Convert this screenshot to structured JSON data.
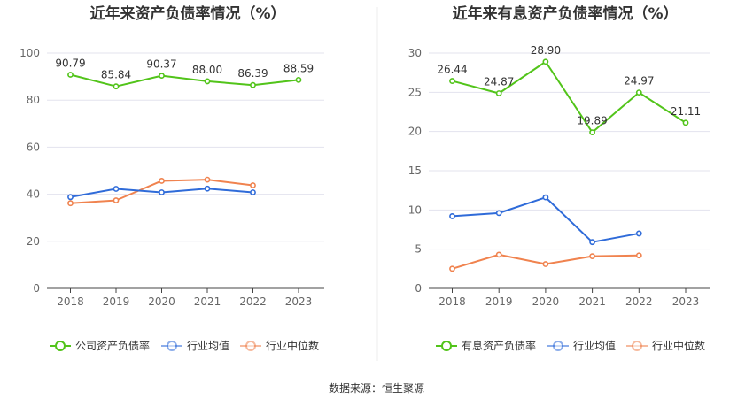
{
  "source_text": "数据来源：恒生聚源",
  "colors": {
    "company": "#52c41a",
    "industry_avg": "#2f6bd9",
    "industry_median": "#f0834f",
    "grid": "#e3e3ee",
    "axis": "#444444"
  },
  "chart_data": [
    {
      "type": "line",
      "title": "近年来资产负债率情况（%）",
      "categories": [
        "2018",
        "2019",
        "2020",
        "2021",
        "2022",
        "2023"
      ],
      "ylim": [
        0,
        100
      ],
      "yticks": [
        0,
        20,
        40,
        60,
        80,
        100
      ],
      "grid": true,
      "legend_position": "bottom",
      "series": [
        {
          "name": "公司资产负债率",
          "color": "#52c41a",
          "values": [
            90.79,
            85.84,
            90.37,
            88.0,
            86.39,
            88.59
          ],
          "labels": [
            "90.79",
            "85.84",
            "90.37",
            "88.00",
            "86.39",
            "88.59"
          ]
        },
        {
          "name": "行业均值",
          "color": "#2f6bd9",
          "values": [
            38.8,
            42.3,
            40.8,
            42.4,
            40.8,
            null
          ]
        },
        {
          "name": "行业中位数",
          "color": "#f0834f",
          "values": [
            36.2,
            37.4,
            45.7,
            46.2,
            43.8,
            null
          ]
        }
      ]
    },
    {
      "type": "line",
      "title": "近年来有息资产负债率情况（%）",
      "categories": [
        "2018",
        "2019",
        "2020",
        "2021",
        "2022",
        "2023"
      ],
      "ylim": [
        0,
        30
      ],
      "yticks": [
        0,
        5,
        10,
        15,
        20,
        25,
        30
      ],
      "grid": true,
      "legend_position": "bottom",
      "series": [
        {
          "name": "有息资产负债率",
          "color": "#52c41a",
          "values": [
            26.44,
            24.87,
            28.9,
            19.89,
            24.97,
            21.11
          ],
          "labels": [
            "26.44",
            "24.87",
            "28.90",
            "19.89",
            "24.97",
            "21.11"
          ]
        },
        {
          "name": "行业均值",
          "color": "#2f6bd9",
          "values": [
            9.2,
            9.6,
            11.6,
            5.9,
            7.0,
            null
          ]
        },
        {
          "name": "行业中位数",
          "color": "#f0834f",
          "values": [
            2.5,
            4.3,
            3.1,
            4.1,
            4.2,
            null
          ]
        }
      ]
    }
  ]
}
